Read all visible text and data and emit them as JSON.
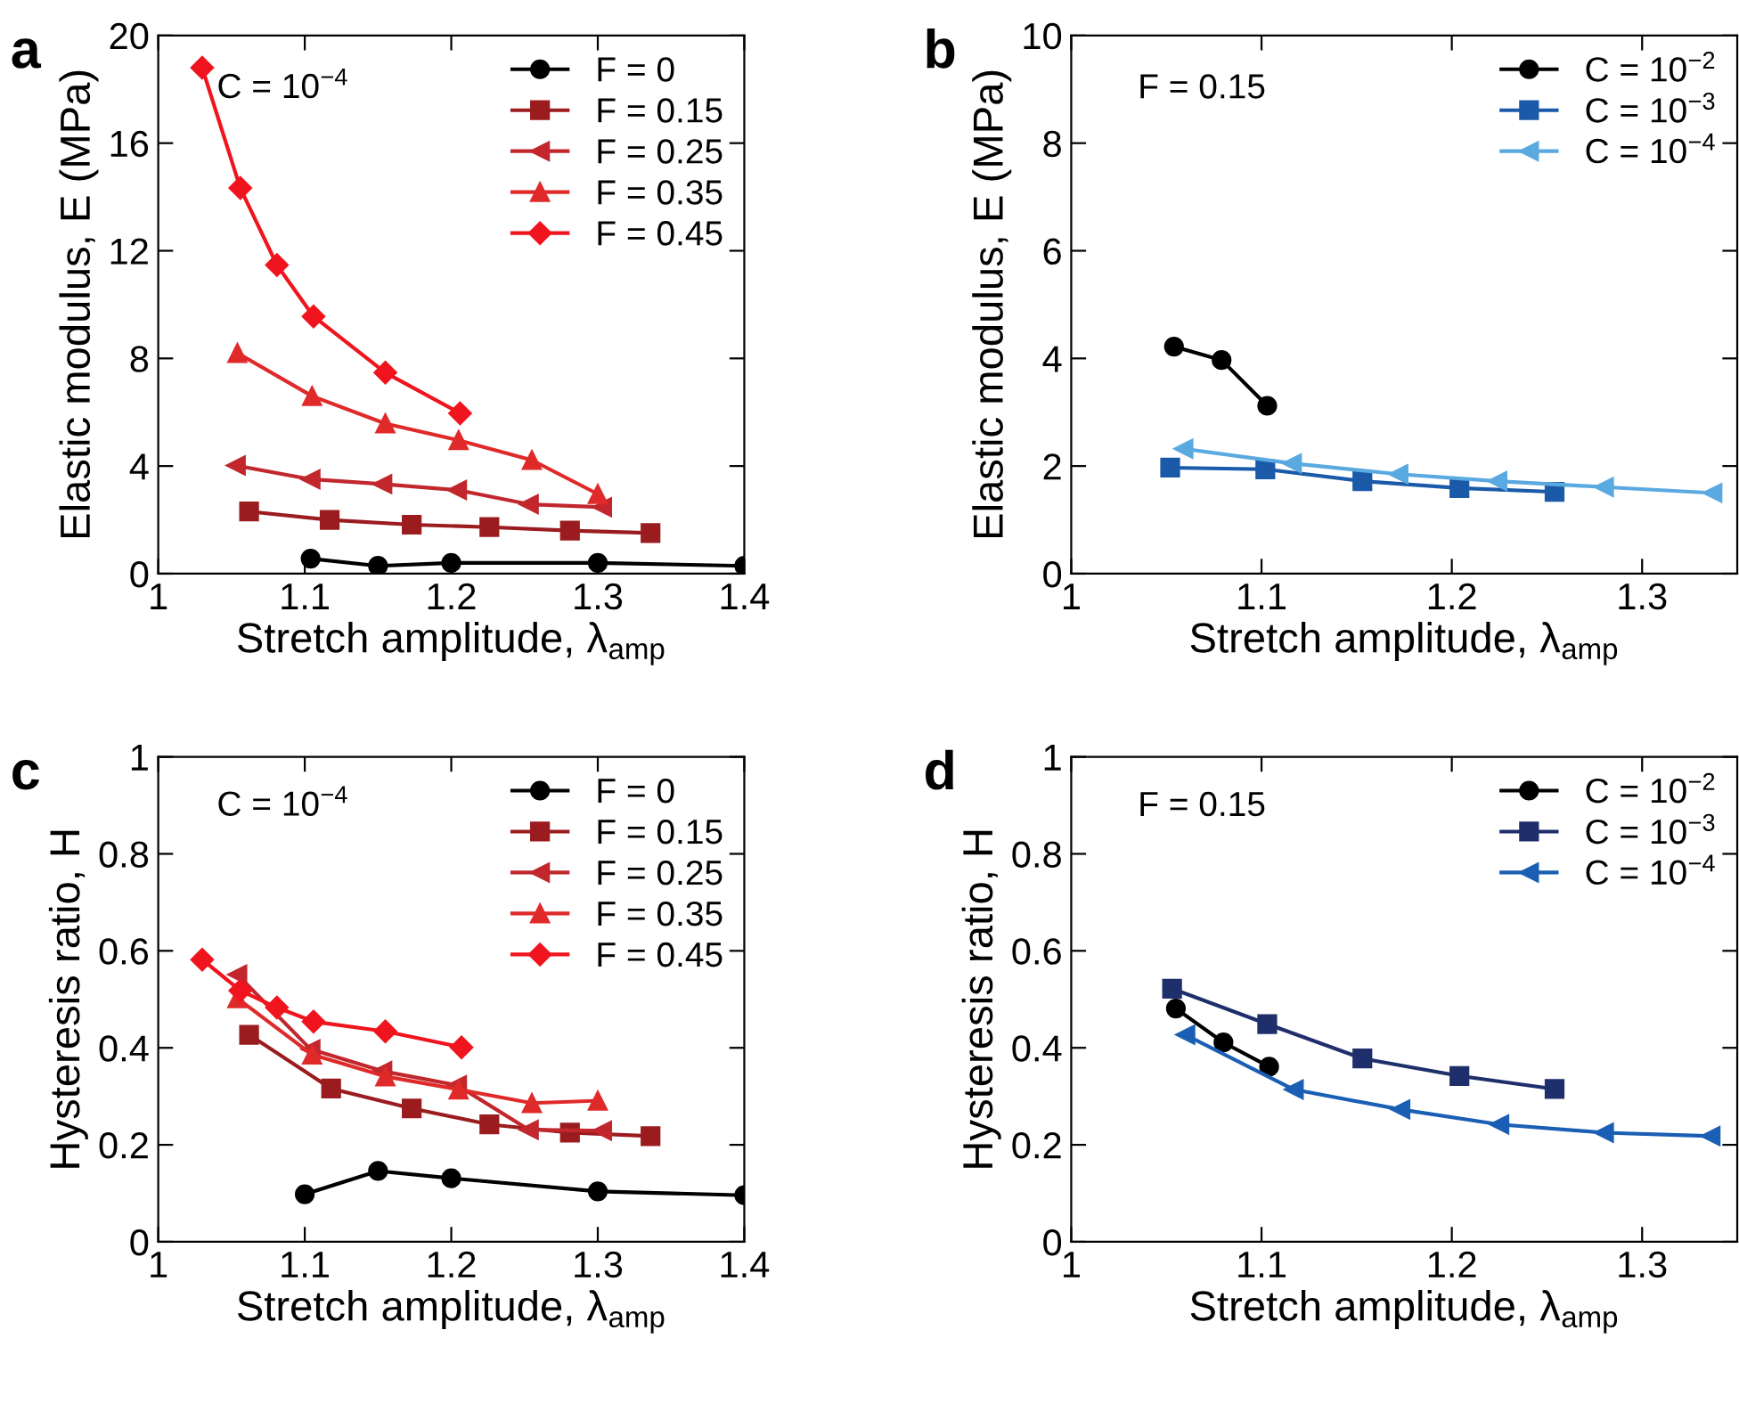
{
  "chart_data": [
    {
      "type": "line",
      "xlabel": "Stretch amplitude, λ$_{amp}$",
      "ylabel": "Elastic modulus, E (MPa)",
      "annotations": [
        "a",
        "C = 10$^{−4}$"
      ],
      "xlim": [
        1,
        1.4
      ],
      "xticks": [
        1,
        1.1,
        1.2,
        1.3,
        1.4
      ],
      "ylim": [
        0,
        20
      ],
      "yticks": [
        0,
        4,
        8,
        12,
        16,
        20
      ],
      "legend": "top right",
      "grid": false,
      "series": [
        {
          "name": "F = 0",
          "color": "#000000",
          "marker": "circle",
          "x": [
            1.104,
            1.15,
            1.2,
            1.3,
            1.4
          ],
          "values": [
            0.56,
            0.29,
            0.4,
            0.4,
            0.29
          ]
        },
        {
          "name": "F = 0.15",
          "color": "#9b1c1f",
          "marker": "square",
          "x": [
            1.062,
            1.117,
            1.173,
            1.226,
            1.281,
            1.336
          ],
          "values": [
            2.31,
            2.0,
            1.82,
            1.73,
            1.6,
            1.51
          ]
        },
        {
          "name": "F = 0.25",
          "color": "#c1272d",
          "marker": "triangle_left",
          "x": [
            1.053,
            1.104,
            1.153,
            1.204,
            1.253,
            1.303
          ],
          "values": [
            4.02,
            3.51,
            3.33,
            3.11,
            2.58,
            2.47
          ]
        },
        {
          "name": "F = 0.35",
          "color": "#e02a2a",
          "marker": "triangle",
          "x": [
            1.054,
            1.105,
            1.155,
            1.205,
            1.255,
            1.3
          ],
          "values": [
            8.2,
            6.6,
            5.58,
            4.96,
            4.22,
            2.96
          ]
        },
        {
          "name": "F = 0.45",
          "color": "#f0141e",
          "marker": "diamond",
          "x": [
            1.03,
            1.056,
            1.081,
            1.106,
            1.155,
            1.206
          ],
          "values": [
            18.8,
            14.33,
            11.47,
            9.56,
            7.47,
            5.96
          ]
        }
      ]
    },
    {
      "type": "line",
      "xlabel": "Stretch amplitude, λ$_{amp}$",
      "ylabel": "Elastic modulus, E (MPa)",
      "annotations": [
        "b",
        "F = 0.15"
      ],
      "xlim": [
        1,
        1.35
      ],
      "xticks": [
        1,
        1.1,
        1.2,
        1.3
      ],
      "ylim": [
        0,
        10
      ],
      "yticks": [
        0,
        2,
        4,
        6,
        8,
        10
      ],
      "legend": "top right",
      "grid": false,
      "series": [
        {
          "name": "C = 10$^{−2}$",
          "color": "#000000",
          "marker": "circle",
          "x": [
            1.054,
            1.079,
            1.103
          ],
          "values": [
            4.22,
            3.97,
            3.12
          ]
        },
        {
          "name": "C = 10$^{−3}$",
          "color": "#1a5aa8",
          "marker": "square",
          "x": [
            1.052,
            1.102,
            1.153,
            1.204,
            1.254
          ],
          "values": [
            1.97,
            1.94,
            1.72,
            1.59,
            1.52
          ]
        },
        {
          "name": "C = 10$^{−4}$",
          "color": "#5aa9e0",
          "marker": "triangle_left",
          "x": [
            1.059,
            1.116,
            1.172,
            1.224,
            1.28,
            1.337
          ],
          "values": [
            2.32,
            2.05,
            1.85,
            1.72,
            1.61,
            1.5
          ]
        }
      ]
    },
    {
      "type": "line",
      "xlabel": "Stretch amplitude, λ$_{amp}$",
      "ylabel": "Hysteresis ratio, H",
      "annotations": [
        "c",
        "C = 10$^{−4}$"
      ],
      "xlim": [
        1,
        1.4
      ],
      "xticks": [
        1,
        1.1,
        1.2,
        1.3,
        1.4
      ],
      "ylim": [
        0,
        1
      ],
      "yticks": [
        0,
        0.2,
        0.4,
        0.6,
        0.8,
        1
      ],
      "legend": "top right",
      "grid": false,
      "series": [
        {
          "name": "F = 0",
          "color": "#000000",
          "marker": "circle",
          "x": [
            1.1,
            1.15,
            1.2,
            1.3,
            1.4
          ],
          "values": [
            0.098,
            0.146,
            0.131,
            0.104,
            0.096
          ]
        },
        {
          "name": "F = 0.15",
          "color": "#9b1c1f",
          "marker": "square",
          "x": [
            1.062,
            1.118,
            1.173,
            1.226,
            1.281,
            1.336
          ],
          "values": [
            0.427,
            0.316,
            0.275,
            0.242,
            0.225,
            0.218
          ]
        },
        {
          "name": "F = 0.25",
          "color": "#c1272d",
          "marker": "triangle_left",
          "x": [
            1.054,
            1.104,
            1.153,
            1.204,
            1.253,
            1.303
          ],
          "values": [
            0.551,
            0.397,
            0.352,
            0.323,
            0.231,
            0.229
          ]
        },
        {
          "name": "F = 0.35",
          "color": "#e02a2a",
          "marker": "triangle",
          "x": [
            1.054,
            1.105,
            1.155,
            1.205,
            1.255,
            1.3
          ],
          "values": [
            0.502,
            0.386,
            0.341,
            0.314,
            0.286,
            0.291
          ]
        },
        {
          "name": "F = 0.45",
          "color": "#f0141e",
          "marker": "diamond",
          "x": [
            1.03,
            1.056,
            1.081,
            1.106,
            1.155,
            1.207
          ],
          "values": [
            0.582,
            0.518,
            0.483,
            0.454,
            0.434,
            0.401
          ]
        }
      ]
    },
    {
      "type": "line",
      "xlabel": "Stretch amplitude, λ$_{amp}$",
      "ylabel": "Hysteresis ratio, H",
      "annotations": [
        "d",
        "F = 0.15"
      ],
      "xlim": [
        1,
        1.35
      ],
      "xticks": [
        1,
        1.1,
        1.2,
        1.3
      ],
      "ylim": [
        0,
        1
      ],
      "yticks": [
        0,
        0.2,
        0.4,
        0.6,
        0.8,
        1
      ],
      "legend": "top right",
      "grid": false,
      "series": [
        {
          "name": "C = 10$^{−2}$",
          "color": "#000000",
          "marker": "circle",
          "x": [
            1.055,
            1.08,
            1.104
          ],
          "values": [
            0.481,
            0.411,
            0.361
          ]
        },
        {
          "name": "C = 10$^{−3}$",
          "color": "#1f2f6b",
          "marker": "square",
          "x": [
            1.053,
            1.103,
            1.153,
            1.204,
            1.254
          ],
          "values": [
            0.522,
            0.449,
            0.378,
            0.342,
            0.315
          ]
        },
        {
          "name": "C = 10$^{−4}$",
          "color": "#1a5fb4",
          "marker": "triangle_left",
          "x": [
            1.06,
            1.117,
            1.173,
            1.225,
            1.28,
            1.336
          ],
          "values": [
            0.427,
            0.314,
            0.273,
            0.242,
            0.225,
            0.218
          ]
        }
      ]
    }
  ]
}
